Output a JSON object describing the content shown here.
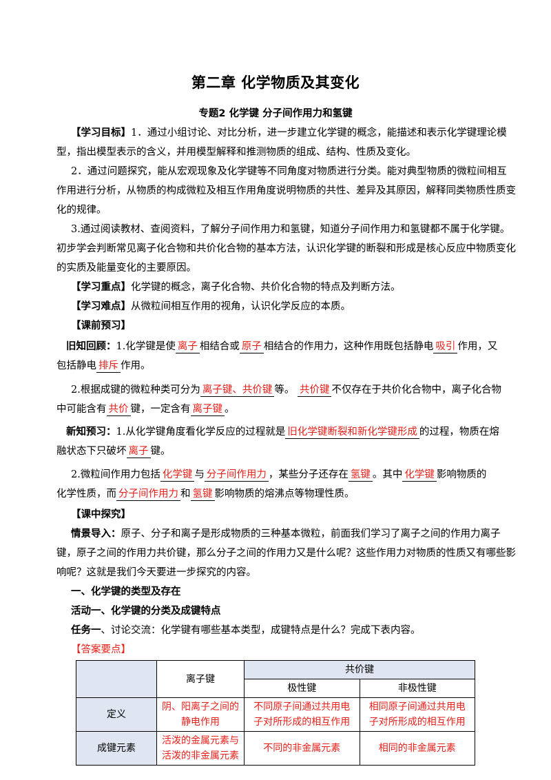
{
  "title": "第二章  化学物质及其变化",
  "subtitle": "专题2    化学键  分子间作用力和氢键",
  "objectives": {
    "label": "【学习目标】",
    "p1_l1": "1．通过小组讨论、对比分析，进一步建立化学键的概念，能描述和表示化学键理论模",
    "p1_l2": "型，指出模型表示的含义，并用模型解释和推测物质的组成、结构、性质及变化。",
    "p2_l1": "2．通过问题探究，能从宏观现象及化学键等不同角度对物质进行分类。能对典型物质的微粒间相互",
    "p2_l2": "作用进行分析，从物质的构成微粒及相互作用角度说明物质的共性、差异及其原因，解释同类物质性质变",
    "p2_l3": "化的规律。",
    "p3_l1": "3.通过阅读教材、查阅资料，了解分子间作用力和氢键，知道分子间作用力和氢键都不属于化学键。",
    "p3_l2": "初步学会判断常见离子化合物和共价化合物的基本方法，认识化学键的断裂和形成是核心反应中物质变化",
    "p3_l3": "的实质及能量变化的主要原因。"
  },
  "key_points": {
    "label": "【学习重点】",
    "text": "化学键的概念，离子化合物、共价化合物的特点及判断方法。"
  },
  "difficulties": {
    "label": "【学习难点】",
    "text": "从微粒间相互作用的视角，认识化学反应的本质。"
  },
  "preview": {
    "label": "【课前预习】",
    "review_label": "旧知回顾：",
    "r1_a": "1.化学键是使",
    "r1_b1": "离子",
    "r1_c": "相结合或",
    "r1_b2": "原子",
    "r1_d": "相结合的作用力，这种作用既包括静电",
    "r1_b3": "吸引",
    "r1_e": "作用，又",
    "r1_f": "包括静电",
    "r1_b4": "排斥",
    "r1_g": "作用。",
    "r2_a": "2.根据成键的微粒种类可分为",
    "r2_b1": "离子键、共价键",
    "r2_c": "等。",
    "r2_b2": "共价键",
    "r2_d": "不仅存在于共价化合物中，离子化合物",
    "r2_e": "中可能含有",
    "r2_b3": "共价",
    "r2_f": "键，一定含有",
    "r2_b4": "离子键",
    "r2_g": "。",
    "new_label": "新知预习：",
    "n1_a": "1.从化学键角度看化学反应的过程就是",
    "n1_b1": "旧化学键断裂和新化学键形成",
    "n1_c": "的过程，物质在熔",
    "n1_d": "融状态下只破坏",
    "n1_b2": "离子",
    "n1_e": "键。",
    "n2_a": "2.微粒间作用力包括",
    "n2_b1": "化学键",
    "n2_c": "与",
    "n2_b2": "分子间作用力",
    "n2_d": "，某些分子还存在",
    "n2_b3": "氢键",
    "n2_e": "。其中",
    "n2_b4": "化学键",
    "n2_f": "影响物质的",
    "n2_g": "化学性质，而",
    "n2_b5": "分子间作用力",
    "n2_h": "和",
    "n2_b6": "氢键",
    "n2_i": "影响物质的熔沸点等物理性质。"
  },
  "explore": {
    "label": "【课中探究】",
    "intro_label": "情景导入：",
    "intro_l1": "原子、分子和离子是形成物质的三种基本微粒，前面我们学习了离子之间的作用力离子",
    "intro_l2": "键，原子之间的作用力共价键，那么分子之间的作用力又是什么呢？这些作用力对物质的性质又有哪些影",
    "intro_l3": "响呢？这就是我们今天要进一步探究的内容。",
    "section1": "一、化学键的类型及存在",
    "activity1": "活动一、化学键的分类及成键特点",
    "task1_label": "任务一",
    "task1_text": "、讨论交流：化学键有哪些基本类型，成键特点是什么？完成下表内容。",
    "answer_label": "【答案要点】"
  },
  "table": {
    "h_ionic": "离子键",
    "h_covalent": "共价键",
    "h_polar": "极性键",
    "h_nonpolar": "非极性键",
    "r1_label": "定义",
    "r1_ionic_l1": "阴、阳离子之间的",
    "r1_ionic_l2": "静电作用",
    "r1_polar_l1": "不同原子间通过共用电",
    "r1_polar_l2": "子对所形成的相互作用",
    "r1_nonpolar_l1": "相同原子间通过共用电",
    "r1_nonpolar_l2": "子对所形成的相互作用",
    "r2_label": "成键元素",
    "r2_ionic_l1": "活泼的金属元素与",
    "r2_ionic_l2": "活泼的非金属元素",
    "r2_polar": "不同的非金属元素",
    "r2_nonpolar": "相同的非金属元素"
  },
  "colors": {
    "answer_red": "#e8201a",
    "header_fill": "#dfe6f1"
  }
}
